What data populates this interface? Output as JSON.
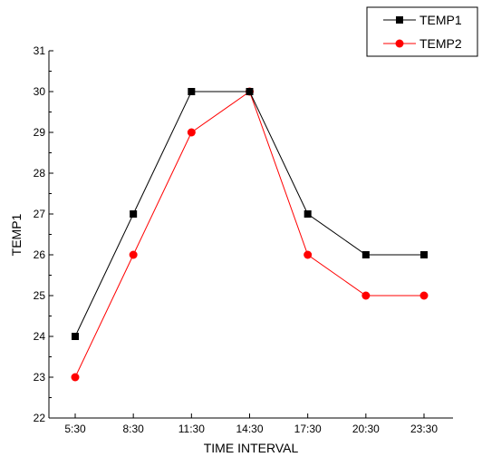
{
  "chart_data": {
    "type": "line",
    "title": "",
    "xlabel": "TIME INTERVAL",
    "ylabel": "TEMP1",
    "categories": [
      "5:30",
      "8:30",
      "11:30",
      "14:30",
      "17:30",
      "20:30",
      "23:30"
    ],
    "ylim": [
      22,
      31
    ],
    "yticks": [
      22,
      23,
      24,
      25,
      26,
      27,
      28,
      29,
      30,
      31
    ],
    "grid": false,
    "legend_position": "top-right",
    "series": [
      {
        "name": "TEMP1",
        "values": [
          24,
          27,
          30,
          30,
          27,
          26,
          26
        ],
        "color": "#000000",
        "marker": "square"
      },
      {
        "name": "TEMP2",
        "values": [
          23,
          26,
          29,
          30,
          26,
          25,
          25
        ],
        "color": "#ff0000",
        "marker": "circle"
      }
    ]
  }
}
